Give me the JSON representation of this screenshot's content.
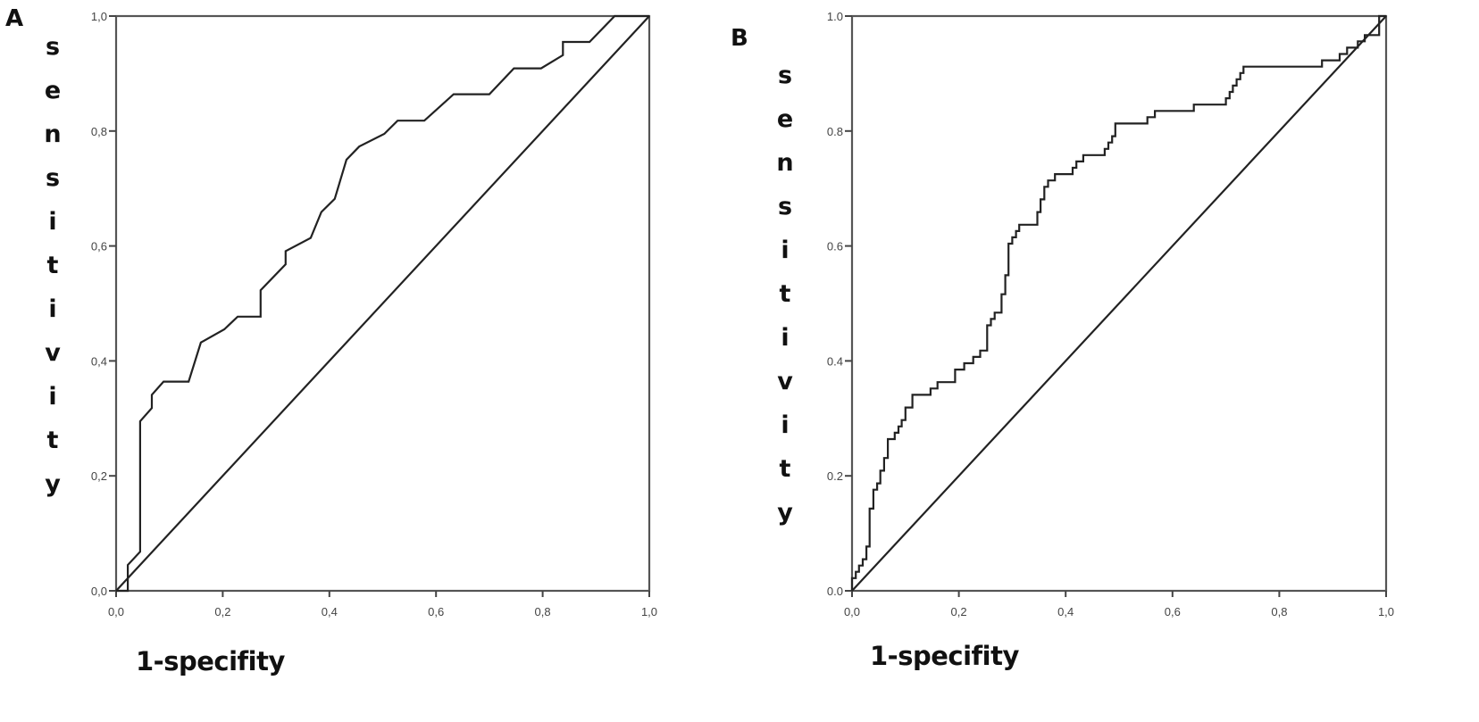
{
  "chart_data": [
    {
      "panel": "A",
      "type": "line",
      "title": "",
      "xlabel": "1-specifity",
      "ylabel": "sensitivity",
      "xlim": [
        0,
        1
      ],
      "ylim": [
        0,
        1
      ],
      "x_ticks": [
        "0,0",
        "0,2",
        "0,4",
        "0,6",
        "0,8",
        "1,0"
      ],
      "y_ticks": [
        "0,0",
        "0,2",
        "0,4",
        "0,6",
        "0,8",
        "1,0"
      ],
      "grid": false,
      "legend": null,
      "series": [
        {
          "name": "ROC curve",
          "x": [
            0.0,
            0.022,
            0.022,
            0.045,
            0.045,
            0.067,
            0.067,
            0.089,
            0.136,
            0.159,
            0.203,
            0.228,
            0.271,
            0.271,
            0.318,
            0.318,
            0.365,
            0.385,
            0.41,
            0.432,
            0.456,
            0.503,
            0.528,
            0.578,
            0.633,
            0.685,
            0.7,
            0.746,
            0.797,
            0.838,
            0.838,
            0.888,
            0.935,
            1.0
          ],
          "y": [
            0.0,
            0.0,
            0.045,
            0.068,
            0.295,
            0.318,
            0.341,
            0.364,
            0.364,
            0.432,
            0.455,
            0.477,
            0.477,
            0.523,
            0.568,
            0.591,
            0.614,
            0.659,
            0.682,
            0.75,
            0.773,
            0.795,
            0.818,
            0.818,
            0.864,
            0.864,
            0.864,
            0.909,
            0.909,
            0.932,
            0.955,
            0.955,
            1.0,
            1.0
          ]
        },
        {
          "name": "Reference line",
          "x": [
            0,
            1
          ],
          "y": [
            0,
            1
          ]
        }
      ]
    },
    {
      "panel": "B",
      "type": "line",
      "title": "",
      "xlabel": "1-specifity",
      "ylabel": "sensitivity",
      "xlim": [
        0,
        1
      ],
      "ylim": [
        0,
        1
      ],
      "x_ticks": [
        "0,0",
        "0,2",
        "0,4",
        "0,6",
        "0,8",
        "1,0"
      ],
      "y_ticks": [
        "0.0",
        "0.2",
        "0.4",
        "0.6",
        "0.8",
        "1.0"
      ],
      "grid": false,
      "legend": null,
      "series": [
        {
          "name": "ROC curve",
          "x": [
            0.0,
            0.0,
            0.007,
            0.007,
            0.013,
            0.013,
            0.02,
            0.02,
            0.027,
            0.027,
            0.033,
            0.033,
            0.04,
            0.04,
            0.047,
            0.047,
            0.053,
            0.053,
            0.06,
            0.06,
            0.067,
            0.067,
            0.08,
            0.08,
            0.087,
            0.087,
            0.093,
            0.093,
            0.1,
            0.1,
            0.113,
            0.113,
            0.147,
            0.147,
            0.16,
            0.16,
            0.193,
            0.193,
            0.21,
            0.21,
            0.227,
            0.227,
            0.24,
            0.24,
            0.253,
            0.253,
            0.26,
            0.26,
            0.267,
            0.267,
            0.28,
            0.28,
            0.287,
            0.287,
            0.293,
            0.293,
            0.3,
            0.3,
            0.307,
            0.307,
            0.313,
            0.313,
            0.347,
            0.347,
            0.353,
            0.353,
            0.36,
            0.36,
            0.367,
            0.367,
            0.38,
            0.38,
            0.413,
            0.413,
            0.42,
            0.42,
            0.433,
            0.433,
            0.473,
            0.473,
            0.48,
            0.48,
            0.487,
            0.487,
            0.493,
            0.493,
            0.553,
            0.553,
            0.567,
            0.567,
            0.64,
            0.64,
            0.7,
            0.7,
            0.707,
            0.707,
            0.713,
            0.713,
            0.72,
            0.72,
            0.727,
            0.727,
            0.733,
            0.733,
            0.88,
            0.88,
            0.913,
            0.913,
            0.927,
            0.927,
            0.947,
            0.947,
            0.96,
            0.96,
            0.987,
            0.987,
            1.0
          ],
          "y": [
            0.0,
            0.022,
            0.022,
            0.033,
            0.033,
            0.044,
            0.044,
            0.055,
            0.055,
            0.077,
            0.077,
            0.143,
            0.143,
            0.176,
            0.176,
            0.187,
            0.187,
            0.209,
            0.209,
            0.231,
            0.231,
            0.264,
            0.264,
            0.275,
            0.275,
            0.286,
            0.286,
            0.297,
            0.297,
            0.319,
            0.319,
            0.341,
            0.341,
            0.352,
            0.352,
            0.363,
            0.363,
            0.385,
            0.385,
            0.396,
            0.396,
            0.407,
            0.407,
            0.418,
            0.418,
            0.462,
            0.462,
            0.473,
            0.473,
            0.484,
            0.484,
            0.516,
            0.516,
            0.549,
            0.549,
            0.604,
            0.604,
            0.615,
            0.615,
            0.626,
            0.626,
            0.637,
            0.637,
            0.659,
            0.659,
            0.681,
            0.681,
            0.703,
            0.703,
            0.714,
            0.714,
            0.725,
            0.725,
            0.736,
            0.736,
            0.747,
            0.747,
            0.758,
            0.758,
            0.769,
            0.769,
            0.78,
            0.78,
            0.791,
            0.791,
            0.813,
            0.813,
            0.824,
            0.824,
            0.835,
            0.835,
            0.846,
            0.846,
            0.857,
            0.857,
            0.868,
            0.868,
            0.879,
            0.879,
            0.89,
            0.89,
            0.901,
            0.901,
            0.912,
            0.912,
            0.923,
            0.923,
            0.934,
            0.934,
            0.945,
            0.945,
            0.956,
            0.956,
            0.967,
            0.967,
            1.0,
            1.0
          ]
        },
        {
          "name": "Reference line",
          "x": [
            0,
            1
          ],
          "y": [
            0,
            1
          ]
        }
      ]
    }
  ],
  "panels": {
    "a": {
      "letter": "A",
      "ylabel_letters": [
        "s",
        "e",
        "n",
        "s",
        "i",
        "t",
        "i",
        "v",
        "i",
        "t",
        "y"
      ],
      "xlabel": "1-specifity",
      "x_ticks": [
        "0,0",
        "0,2",
        "0,4",
        "0,6",
        "0,8",
        "1,0"
      ],
      "y_ticks": [
        "0,0",
        "0,2",
        "0,4",
        "0,6",
        "0,8",
        "1,0"
      ]
    },
    "b": {
      "letter": "B",
      "ylabel_letters": [
        "s",
        "e",
        "n",
        "s",
        "i",
        "t",
        "i",
        "v",
        "i",
        "t",
        "y"
      ],
      "xlabel": "1-specifity",
      "x_ticks": [
        "0,0",
        "0,2",
        "0,4",
        "0,6",
        "0,8",
        "1,0"
      ],
      "y_ticks": [
        "0.0",
        "0.2",
        "0.4",
        "0.6",
        "0.8",
        "1.0"
      ]
    }
  }
}
